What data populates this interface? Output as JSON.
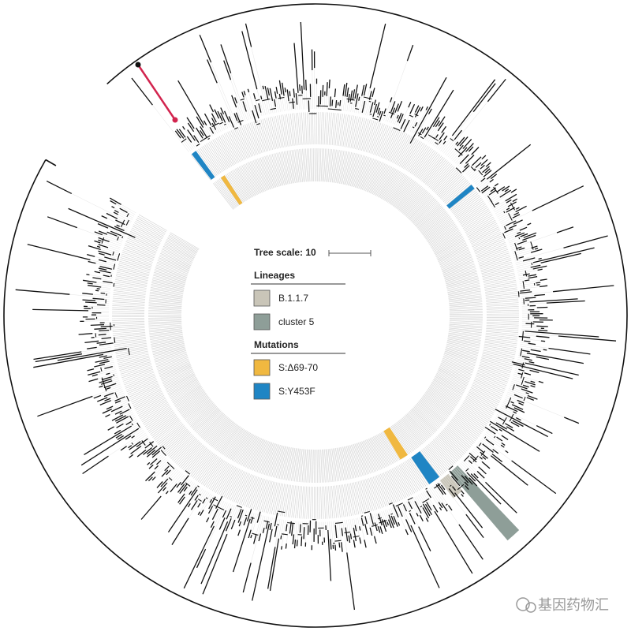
{
  "tree_scale": {
    "label": "Tree scale: 10"
  },
  "legend": {
    "lineages": {
      "title": "Lineages",
      "items": [
        {
          "label": "B.1.1.7",
          "color": "#c9c5b8"
        },
        {
          "label": "cluster 5",
          "color": "#8e9e98"
        }
      ]
    },
    "mutations": {
      "title": "Mutations",
      "items": [
        {
          "label": "S:Δ69-70",
          "color": "#f0b840"
        },
        {
          "label": "S:Y453F",
          "color": "#1f85c4"
        }
      ]
    }
  },
  "watermark": "基因药物汇"
}
